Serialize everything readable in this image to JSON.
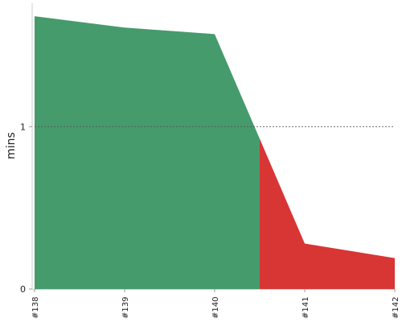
{
  "chart_data": {
    "type": "area",
    "categories": [
      "#138",
      "#139",
      "#140",
      "#141",
      "#142"
    ],
    "values": [
      1.68,
      1.61,
      1.57,
      0.28,
      0.19
    ],
    "ylabel": "mins",
    "yticks": [
      0,
      1
    ],
    "ylim": [
      0,
      1.76
    ],
    "reference_line": {
      "y": 1,
      "style": "dotted"
    },
    "split_between": [
      "#140",
      "#141"
    ],
    "colors": {
      "passing": "#459b6c",
      "failing": "#d83535"
    }
  }
}
